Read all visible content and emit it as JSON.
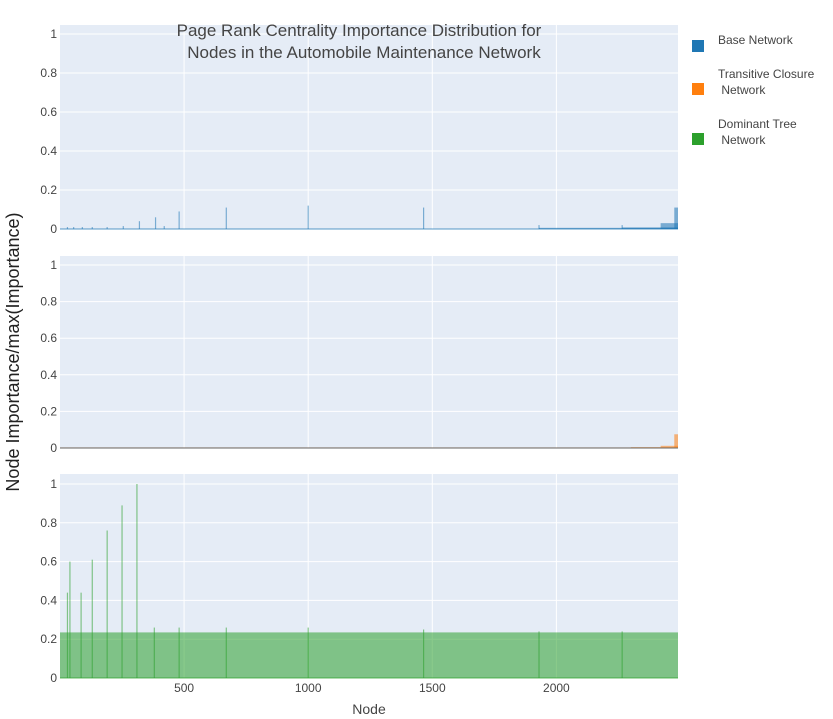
{
  "chart_data": {
    "type": "area",
    "title_lines": [
      "Page Rank Centrality Importance Distribution for",
      "Nodes in the Automobile Maintenance Network"
    ],
    "xlabel": "Node",
    "ylabel": "Node Importance/max(Importance)",
    "xlim": [
      0,
      2490
    ],
    "ylim": [
      0,
      1
    ],
    "x_ticks": [
      500,
      1000,
      1500,
      2000
    ],
    "y_ticks": [
      0,
      0.2,
      0.4,
      0.6,
      0.8,
      1
    ],
    "x_tick_labels": [
      "500",
      "1000",
      "1500",
      "2000"
    ],
    "y_tick_labels": [
      "0",
      "0.2",
      "0.4",
      "0.6",
      "0.8",
      "1"
    ],
    "grid": true,
    "legend_position": "top-right",
    "series": [
      {
        "name": "Base Network",
        "color": "#1f77b4",
        "baseline": 0.0,
        "spikes": [
          [
            30,
            0.01
          ],
          [
            55,
            0.01
          ],
          [
            90,
            0.01
          ],
          [
            130,
            0.01
          ],
          [
            190,
            0.01
          ],
          [
            255,
            0.015
          ],
          [
            320,
            0.04
          ],
          [
            385,
            0.06
          ],
          [
            420,
            0.015
          ],
          [
            480,
            0.09
          ],
          [
            670,
            0.11
          ],
          [
            1000,
            0.12
          ],
          [
            1465,
            0.11
          ],
          [
            1930,
            0.02
          ],
          [
            2265,
            0.02
          ]
        ],
        "steps": [
          [
            1930,
            0.006
          ],
          [
            2265,
            0.008
          ],
          [
            2420,
            0.03
          ],
          [
            2475,
            0.11
          ]
        ]
      },
      {
        "name": "Transitive Closure Network",
        "color": "#ff7f0e",
        "baseline": 0.003,
        "spikes": [],
        "steps": [
          [
            2300,
            0.005
          ],
          [
            2420,
            0.012
          ],
          [
            2475,
            0.075
          ]
        ]
      },
      {
        "name": "Dominant Tree Network",
        "color": "#2ca02c",
        "baseline": 0.235,
        "spikes": [
          [
            30,
            0.44
          ],
          [
            40,
            0.6
          ],
          [
            85,
            0.44
          ],
          [
            130,
            0.61
          ],
          [
            190,
            0.76
          ],
          [
            250,
            0.89
          ],
          [
            310,
            1.0
          ],
          [
            380,
            0.26
          ],
          [
            480,
            0.26
          ],
          [
            670,
            0.26
          ],
          [
            1000,
            0.26
          ],
          [
            1465,
            0.25
          ],
          [
            1930,
            0.24
          ],
          [
            2265,
            0.24
          ]
        ],
        "steps": []
      }
    ]
  }
}
